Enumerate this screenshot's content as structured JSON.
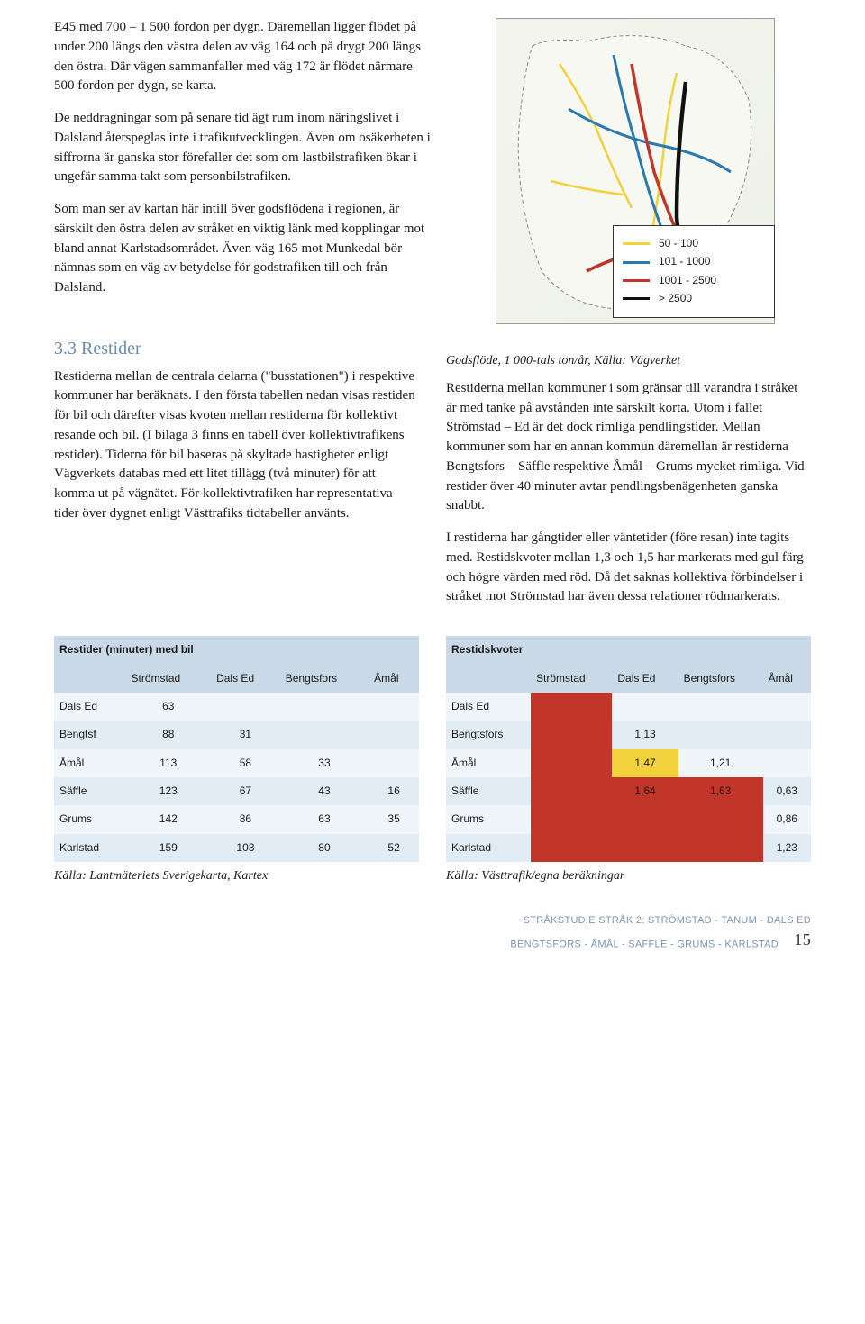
{
  "para1": "E45 med 700 – 1 500 fordon per dygn. Däremellan ligger flödet på under 200 längs den västra delen av väg 164 och på drygt 200 längs den östra. Där vägen sammanfaller med väg 172 är flödet närmare 500 fordon per dygn, se karta.",
  "para2": "De neddragningar som på senare tid ägt rum inom näringslivet i Dalsland återspeglas inte i trafikutvecklingen. Även om osäkerheten i siffrorna är ganska stor förefaller det som om lastbilstrafiken ökar i ungefär samma takt som personbilstrafiken.",
  "para3": "Som man ser av kartan här intill över godsflödena i regionen, är särskilt den östra delen av stråket en viktig länk med kopplingar mot bland annat Karlstadsområdet. Även väg 165 mot Munkedal bör nämnas som en väg av betydelse för godstrafiken till och från Dalsland.",
  "legend": {
    "items": [
      {
        "color": "#f2d23c",
        "label": "50 - 100"
      },
      {
        "color": "#2a7ab0",
        "label": "101 - 1000"
      },
      {
        "color": "#c1352b",
        "label": "1001 - 2500"
      },
      {
        "color": "#111111",
        "label": "> 2500"
      }
    ]
  },
  "caption_map": "Godsflöde, 1 000-tals ton/år, Källa: Vägverket",
  "section_title": "3.3 Restider",
  "para_left": "Restiderna mellan de centrala delarna (\"busstationen\") i respektive kommuner har beräknats. I den första tabellen nedan visas restiden för bil och därefter visas kvoten mellan restiderna för kollektivt resande och bil. (I bilaga 3 finns en tabell över kollektivtrafikens restider). Tiderna för bil baseras på skyltade hastigheter enligt Vägverkets databas med ett litet tillägg (två minuter) för att komma ut på vägnätet. För kollektivtrafiken har representativa tider över dygnet enligt Västtrafiks tidtabeller använts.",
  "para_right1": "Restiderna mellan kommuner i som gränsar till varandra i stråket är med tanke på avstånden inte särskilt korta. Utom i fallet Strömstad – Ed är det dock rimliga pendlingstider. Mellan kommuner som har en annan kommun däremellan är restiderna Bengtsfors – Säffle respektive Åmål – Grums mycket rimliga. Vid restider över 40 minuter avtar pendlingsbenägenheten ganska snabbt.",
  "para_right2": "I restiderna har gångtider eller väntetider (före resan) inte tagits med. Restidskvoter mellan 1,3 och 1,5 har markerats med gul färg och högre värden med röd. Då det saknas kollektiva förbindelser i stråket mot Strömstad har även dessa relationer rödmarkerats.",
  "table1": {
    "title": "Restider (minuter) med bil",
    "headers": [
      "",
      "Strömstad",
      "Dals Ed",
      "Bengtsfors",
      "Åmål"
    ],
    "rows": [
      {
        "label": "Dals Ed",
        "c": [
          "63",
          "",
          "",
          ""
        ]
      },
      {
        "label": "Bengtsf",
        "c": [
          "88",
          "31",
          "",
          ""
        ]
      },
      {
        "label": "Åmål",
        "c": [
          "113",
          "58",
          "33",
          ""
        ]
      },
      {
        "label": "Säffle",
        "c": [
          "123",
          "67",
          "43",
          "16"
        ]
      },
      {
        "label": "Grums",
        "c": [
          "142",
          "86",
          "63",
          "35"
        ]
      },
      {
        "label": "Karlstad",
        "c": [
          "159",
          "103",
          "80",
          "52"
        ]
      }
    ],
    "source": "Källa: Lantmäteriets Sverigekarta, Kartex"
  },
  "table2": {
    "title": "Restidskvoter",
    "headers": [
      "",
      "Strömstad",
      "Dals Ed",
      "Bengtsfors",
      "Åmål"
    ],
    "rows": [
      {
        "label": "Dals Ed",
        "c": [
          {
            "v": "",
            "hl": "red"
          },
          {
            "v": ""
          },
          {
            "v": ""
          },
          {
            "v": ""
          }
        ]
      },
      {
        "label": "Bengtsfors",
        "c": [
          {
            "v": "",
            "hl": "red"
          },
          {
            "v": "1,13"
          },
          {
            "v": ""
          },
          {
            "v": ""
          }
        ]
      },
      {
        "label": "Åmål",
        "c": [
          {
            "v": "",
            "hl": "red"
          },
          {
            "v": "1,47",
            "hl": "yellow"
          },
          {
            "v": "1,21"
          },
          {
            "v": ""
          }
        ]
      },
      {
        "label": "Säffle",
        "c": [
          {
            "v": "",
            "hl": "red"
          },
          {
            "v": "1,64",
            "hl": "red"
          },
          {
            "v": "1,63",
            "hl": "red"
          },
          {
            "v": "0,63"
          }
        ]
      },
      {
        "label": "Grums",
        "c": [
          {
            "v": "",
            "hl": "red"
          },
          {
            "v": "",
            "hl": "red"
          },
          {
            "v": "",
            "hl": "red"
          },
          {
            "v": "0,86"
          }
        ]
      },
      {
        "label": "Karlstad",
        "c": [
          {
            "v": "",
            "hl": "red"
          },
          {
            "v": "",
            "hl": "red"
          },
          {
            "v": "",
            "hl": "red"
          },
          {
            "v": "1,23"
          }
        ]
      }
    ],
    "source": "Källa: Västtrafik/egna beräkningar"
  },
  "footer_line1": "STRÅKSTUDIE STRÅK 2: STRÖMSTAD - TANUM - DALS ED",
  "footer_line2": "BENGTSFORS - ÅMÅL - SÄFFLE - GRUMS - KARLSTAD",
  "page_number": "15"
}
